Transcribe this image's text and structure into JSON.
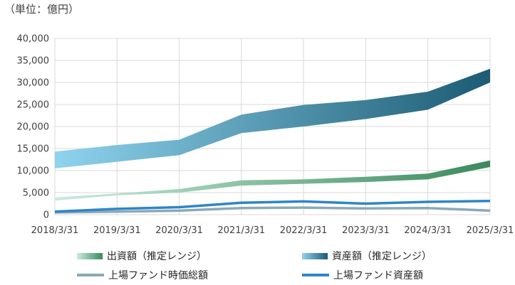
{
  "unit_label": "（単位：億円）",
  "chart_data": {
    "type": "area",
    "categories": [
      "2018/3/31",
      "2019/3/31",
      "2020/3/31",
      "2021/3/31",
      "2022/3/31",
      "2023/3/31",
      "2024/3/31",
      "2025/3/31"
    ],
    "ylim": [
      0,
      40000
    ],
    "yticks": [
      "0",
      "5,000",
      "10,000",
      "15,000",
      "20,000",
      "25,000",
      "30,000",
      "35,000",
      "40,000"
    ],
    "grid": true,
    "legend_position": "bottom",
    "ranges": [
      {
        "name": "資産額（推定レンジ）",
        "low": [
          10500,
          12000,
          13500,
          18500,
          20000,
          21700,
          23800,
          30000
        ],
        "high": [
          14300,
          15800,
          17000,
          22700,
          24900,
          26000,
          27900,
          33100
        ],
        "colors": {
          "low": "#8fd3ee",
          "high": "#1c5b73"
        }
      },
      {
        "name": "出資額（推定レンジ）",
        "low": [
          3200,
          4400,
          5000,
          6600,
          7000,
          7400,
          8000,
          10800
        ],
        "high": [
          3900,
          4800,
          5800,
          7800,
          8000,
          8600,
          9300,
          12300
        ],
        "colors": {
          "low": "#c9ecdd",
          "high": "#3a8a5c"
        }
      }
    ],
    "series": [
      {
        "name": "上場ファンド時価総額",
        "values": [
          500,
          700,
          900,
          1500,
          1600,
          1400,
          1500,
          900
        ],
        "color": "#8aa9b8"
      },
      {
        "name": "上場ファンド資産額",
        "values": [
          700,
          1300,
          1700,
          2700,
          3000,
          2500,
          2900,
          3100
        ],
        "color": "#2e85c8"
      }
    ]
  }
}
